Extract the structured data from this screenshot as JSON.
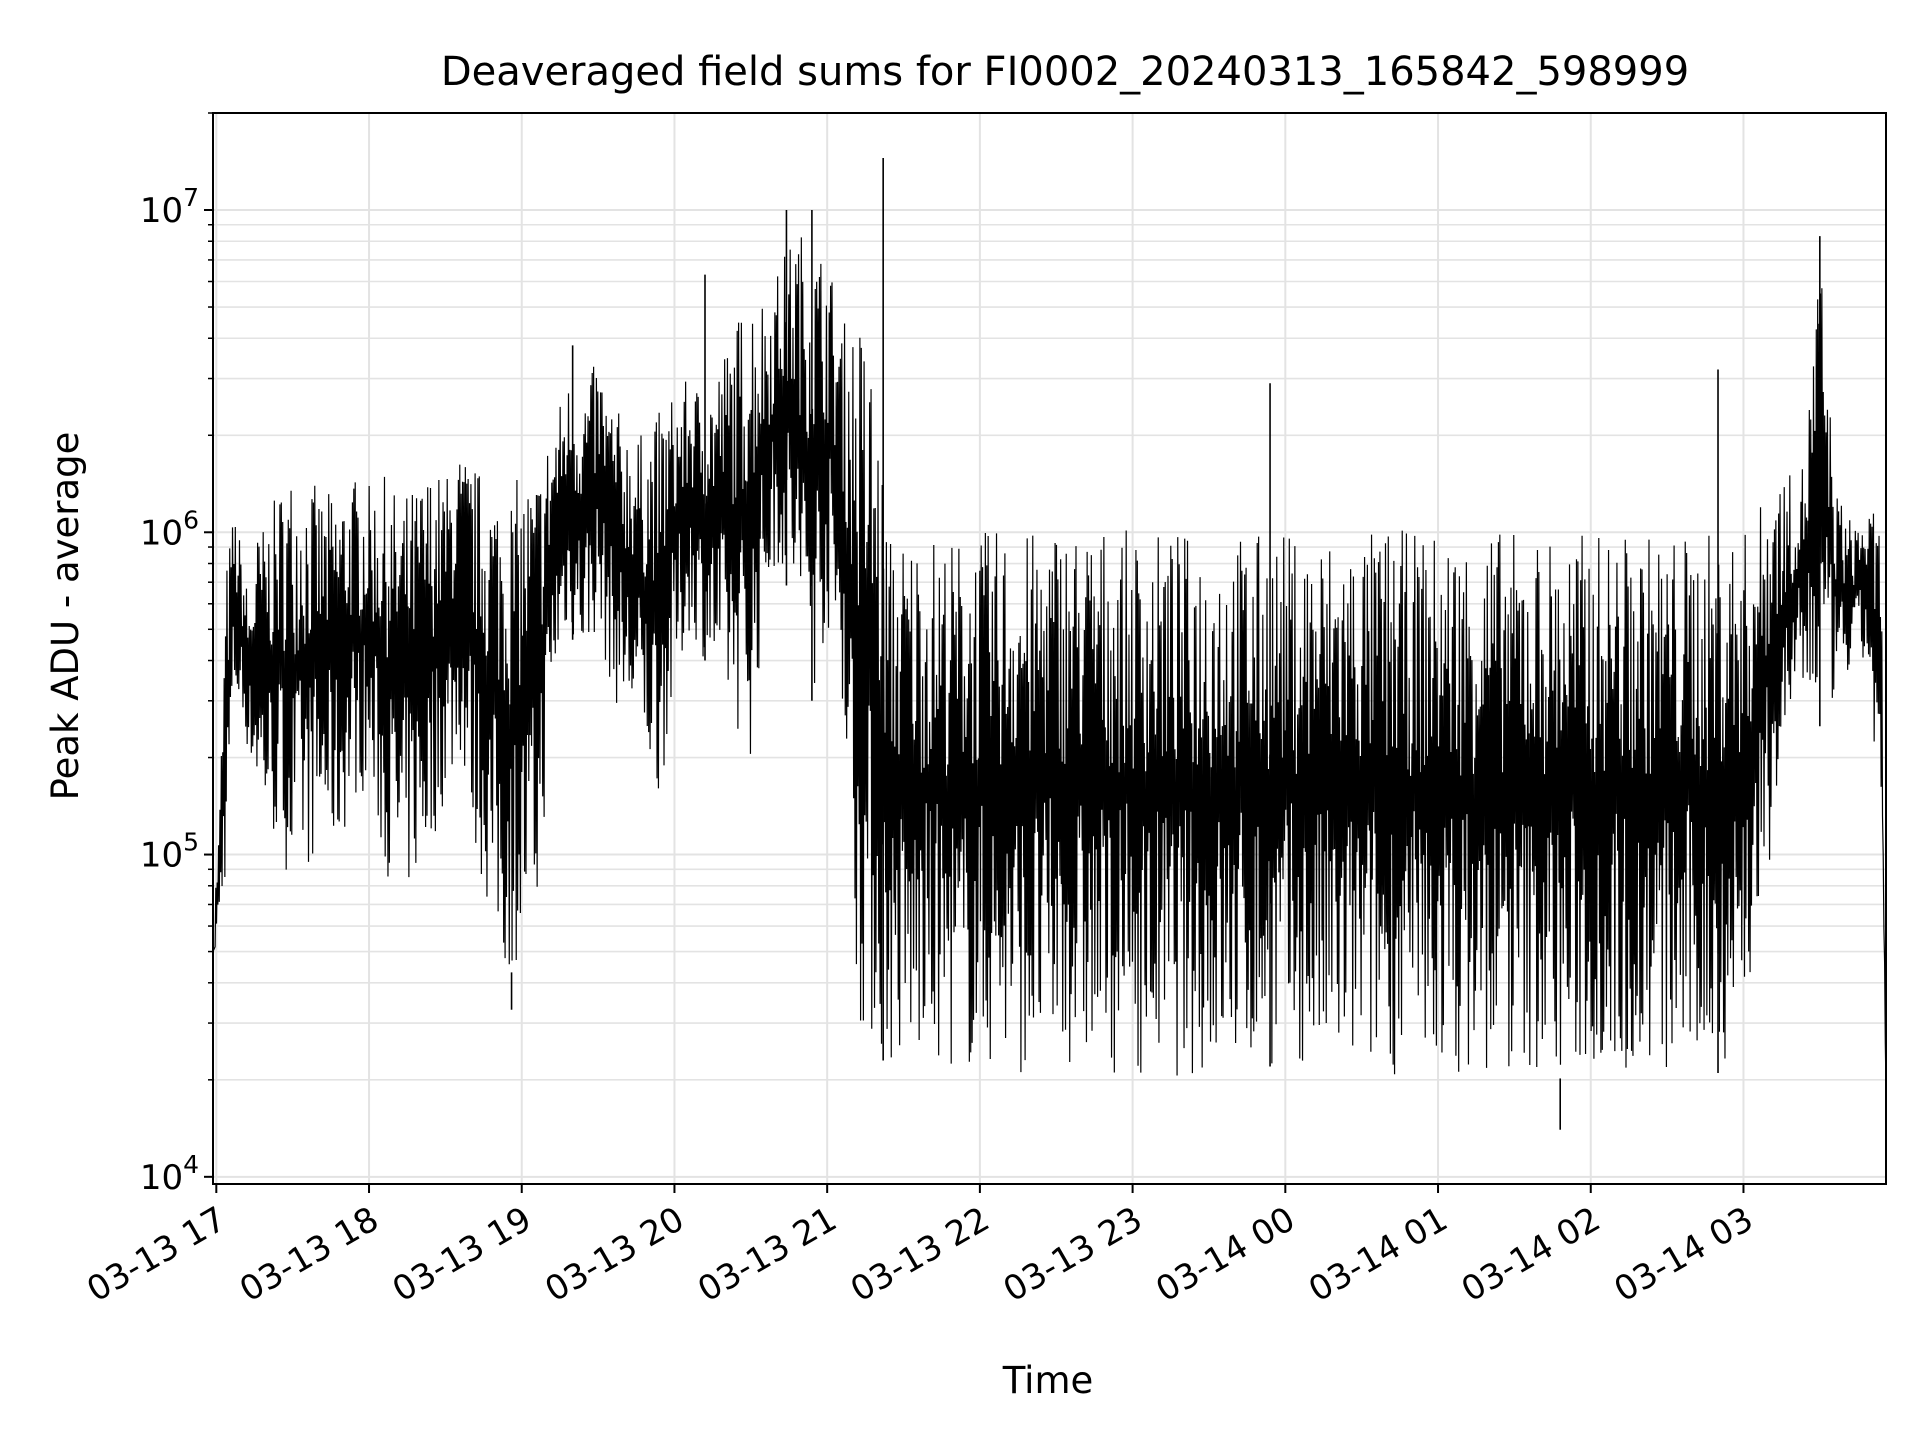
{
  "chart_data": {
    "type": "line",
    "title": "Deaveraged field sums for FI0002_20240313_165842_598999",
    "xlabel": "Time",
    "ylabel": "Peak ADU - average",
    "yscale": "log",
    "ylim": [
      9500,
      20000000
    ],
    "xlim": [
      "2024-03-13 16:58:42",
      "2024-03-14 03:56:00"
    ],
    "grid": true,
    "line_color": "#000000",
    "grid_color": "#e3e3e3",
    "x_ticks": [
      {
        "time": "2024-03-13 17:00",
        "label": "03-13 17"
      },
      {
        "time": "2024-03-13 18:00",
        "label": "03-13 18"
      },
      {
        "time": "2024-03-13 19:00",
        "label": "03-13 19"
      },
      {
        "time": "2024-03-13 20:00",
        "label": "03-13 20"
      },
      {
        "time": "2024-03-13 21:00",
        "label": "03-13 21"
      },
      {
        "time": "2024-03-13 22:00",
        "label": "03-13 22"
      },
      {
        "time": "2024-03-13 23:00",
        "label": "03-13 23"
      },
      {
        "time": "2024-03-14 00:00",
        "label": "03-14 00"
      },
      {
        "time": "2024-03-14 01:00",
        "label": "03-14 01"
      },
      {
        "time": "2024-03-14 02:00",
        "label": "03-14 02"
      },
      {
        "time": "2024-03-14 03:00",
        "label": "03-14 03"
      }
    ],
    "y_ticks": [
      {
        "value": 10000,
        "base": "10",
        "exp": "4"
      },
      {
        "value": 100000,
        "base": "10",
        "exp": "5"
      },
      {
        "value": 1000000,
        "base": "10",
        "exp": "6"
      },
      {
        "value": 10000000,
        "base": "10",
        "exp": "7"
      }
    ],
    "series": [
      {
        "times": [
          "2024-03-13 16:58:42",
          "2024-03-13 17:01",
          "2024-03-13 17:04",
          "2024-03-13 17:07",
          "2024-03-13 17:10",
          "2024-03-13 17:13",
          "2024-03-13 17:16",
          "2024-03-13 17:20",
          "2024-03-13 17:25",
          "2024-03-13 17:30",
          "2024-03-13 17:36",
          "2024-03-13 17:42",
          "2024-03-13 17:48",
          "2024-03-13 17:54",
          "2024-03-13 18:00",
          "2024-03-13 18:06",
          "2024-03-13 18:12",
          "2024-03-13 18:18",
          "2024-03-13 18:24",
          "2024-03-13 18:30",
          "2024-03-13 18:36",
          "2024-03-13 18:42",
          "2024-03-13 18:48",
          "2024-03-13 18:54",
          "2024-03-13 19:00",
          "2024-03-13 19:06",
          "2024-03-13 19:12",
          "2024-03-13 19:18",
          "2024-03-13 19:24",
          "2024-03-13 19:30",
          "2024-03-13 19:36",
          "2024-03-13 19:42",
          "2024-03-13 19:48",
          "2024-03-13 19:54",
          "2024-03-13 20:00",
          "2024-03-13 20:06",
          "2024-03-13 20:12",
          "2024-03-13 20:18",
          "2024-03-13 20:24",
          "2024-03-13 20:30",
          "2024-03-13 20:36",
          "2024-03-13 20:42",
          "2024-03-13 20:48",
          "2024-03-13 20:54",
          "2024-03-13 21:00",
          "2024-03-13 21:06",
          "2024-03-13 21:12",
          "2024-03-13 21:18",
          "2024-03-13 21:24",
          "2024-03-13 21:30",
          "2024-03-13 21:36",
          "2024-03-13 21:42",
          "2024-03-13 21:48",
          "2024-03-13 21:54",
          "2024-03-13 22:00",
          "2024-03-13 22:10",
          "2024-03-13 22:20",
          "2024-03-13 22:30",
          "2024-03-13 22:40",
          "2024-03-13 22:50",
          "2024-03-13 23:00",
          "2024-03-13 23:10",
          "2024-03-13 23:20",
          "2024-03-13 23:30",
          "2024-03-13 23:40",
          "2024-03-13 23:50",
          "2024-03-14 00:00",
          "2024-03-14 00:10",
          "2024-03-14 00:20",
          "2024-03-14 00:30",
          "2024-03-14 00:40",
          "2024-03-14 00:50",
          "2024-03-14 01:00",
          "2024-03-14 01:10",
          "2024-03-14 01:20",
          "2024-03-14 01:30",
          "2024-03-14 01:40",
          "2024-03-14 01:50",
          "2024-03-14 02:00",
          "2024-03-14 02:10",
          "2024-03-14 02:20",
          "2024-03-14 02:30",
          "2024-03-14 02:40",
          "2024-03-14 02:50",
          "2024-03-14 03:00",
          "2024-03-14 03:06",
          "2024-03-14 03:12",
          "2024-03-14 03:18",
          "2024-03-14 03:24",
          "2024-03-14 03:30",
          "2024-03-14 03:36",
          "2024-03-14 03:42",
          "2024-03-14 03:48",
          "2024-03-14 03:54",
          "2024-03-14 03:56"
        ],
        "upper": [
          60000,
          120000,
          800000,
          1200000,
          900000,
          600000,
          1000000,
          1100000,
          1400000,
          1600000,
          1500000,
          1300000,
          1400000,
          1500000,
          1400000,
          1500000,
          1300000,
          1400000,
          1600000,
          1500000,
          1800000,
          1600000,
          1500000,
          1400000,
          1500000,
          1600000,
          2200000,
          3000000,
          2800000,
          3500000,
          2500000,
          2200000,
          2000000,
          2400000,
          2800000,
          3000000,
          2800000,
          3500000,
          4500000,
          6000000,
          5500000,
          7000000,
          9000000,
          8000000,
          7500000,
          4500000,
          5000000,
          3500000,
          1000000,
          1000000,
          1000000,
          1000000,
          950000,
          1000000,
          1000000,
          1050000,
          1000000,
          1100000,
          1050000,
          1050000,
          1000000,
          1000000,
          1000000,
          1000000,
          1000000,
          1000000,
          1000000,
          1000000,
          1000000,
          1000000,
          1050000,
          1000000,
          1000000,
          1000000,
          1050000,
          1000000,
          1000000,
          1000000,
          1000000,
          1000000,
          1000000,
          1000000,
          1000000,
          1000000,
          1000000,
          1200000,
          1600000,
          1500000,
          1700000,
          8000000,
          1400000,
          1100000,
          1200000,
          1100000,
          20000
        ],
        "lower": [
          50000,
          55000,
          90000,
          300000,
          250000,
          200000,
          150000,
          120000,
          100000,
          80000,
          90000,
          110000,
          100000,
          150000,
          160000,
          90000,
          70000,
          80000,
          100000,
          150000,
          200000,
          100000,
          60000,
          40000,
          50000,
          60000,
          300000,
          500000,
          400000,
          500000,
          300000,
          250000,
          200000,
          150000,
          300000,
          500000,
          400000,
          300000,
          250000,
          200000,
          600000,
          800000,
          500000,
          300000,
          500000,
          300000,
          30000,
          25000,
          22000,
          21000,
          22000,
          22000,
          22000,
          21000,
          22000,
          21000,
          21000,
          22000,
          22000,
          21000,
          21000,
          21000,
          20000,
          21000,
          21000,
          22000,
          22000,
          21000,
          20000,
          21000,
          21000,
          20000,
          21000,
          21000,
          20000,
          21000,
          21000,
          20000,
          21000,
          21000,
          20000,
          20000,
          21000,
          21000,
          30000,
          50000,
          120000,
          250000,
          300000,
          250000,
          300000,
          350000,
          400000,
          120000,
          16000
        ],
        "spikes": [
          {
            "time": "2024-03-13 21:22",
            "value": 14500000
          },
          {
            "time": "2024-03-13 20:54",
            "value": 10000000
          },
          {
            "time": "2024-03-13 20:44",
            "value": 10000000
          },
          {
            "time": "2024-03-13 20:12",
            "value": 6300000
          },
          {
            "time": "2024-03-13 23:54",
            "value": 2900000
          },
          {
            "time": "2024-03-14 02:50",
            "value": 3200000
          },
          {
            "time": "2024-03-14 03:30",
            "value": 8300000
          },
          {
            "time": "2024-03-13 19:20",
            "value": 3800000
          },
          {
            "time": "2024-03-13 18:56",
            "value": 33000
          },
          {
            "time": "2024-03-14 01:48",
            "value": 14000
          }
        ]
      }
    ]
  }
}
